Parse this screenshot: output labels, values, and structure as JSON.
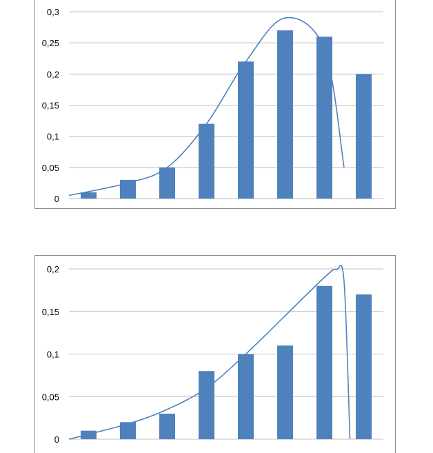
{
  "colors": {
    "bar": "#4f81bd",
    "curve": "#4f81bd",
    "grid": "#bfbfbf",
    "frame": "#8c8c8c"
  },
  "chart_data": [
    {
      "type": "bar",
      "overlay": "smooth-line",
      "values": [
        0.01,
        0.03,
        0.05,
        0.12,
        0.22,
        0.27,
        0.26,
        0.2
      ],
      "curve": [
        [
          0.5,
          0.005
        ],
        [
          2,
          0.025
        ],
        [
          3,
          0.05
        ],
        [
          4,
          0.12
        ],
        [
          5,
          0.22
        ],
        [
          6,
          0.29
        ],
        [
          7,
          0.24
        ],
        [
          7.5,
          0.05
        ]
      ],
      "ylim": [
        0,
        0.3
      ],
      "ytick_labels": [
        "0",
        "0,05",
        "0,1",
        "0,15",
        "0,2",
        "0,25",
        "0,3"
      ],
      "grid": true,
      "legend": "none"
    },
    {
      "type": "bar",
      "overlay": "smooth-line",
      "values": [
        0.01,
        0.02,
        0.03,
        0.08,
        0.1,
        0.11,
        0.18,
        0.17
      ],
      "curve": [
        [
          0.5,
          0.0
        ],
        [
          2,
          0.018
        ],
        [
          3,
          0.035
        ],
        [
          4,
          0.06
        ],
        [
          5,
          0.1
        ],
        [
          6,
          0.145
        ],
        [
          7,
          0.19
        ],
        [
          7.3,
          0.199
        ],
        [
          7.5,
          0.185
        ],
        [
          7.65,
          0.0
        ]
      ],
      "ylim": [
        0,
        0.2
      ],
      "ytick_labels": [
        "0",
        "0,05",
        "0,1",
        "0,15",
        "0,2"
      ],
      "grid": true,
      "legend": "none"
    }
  ]
}
